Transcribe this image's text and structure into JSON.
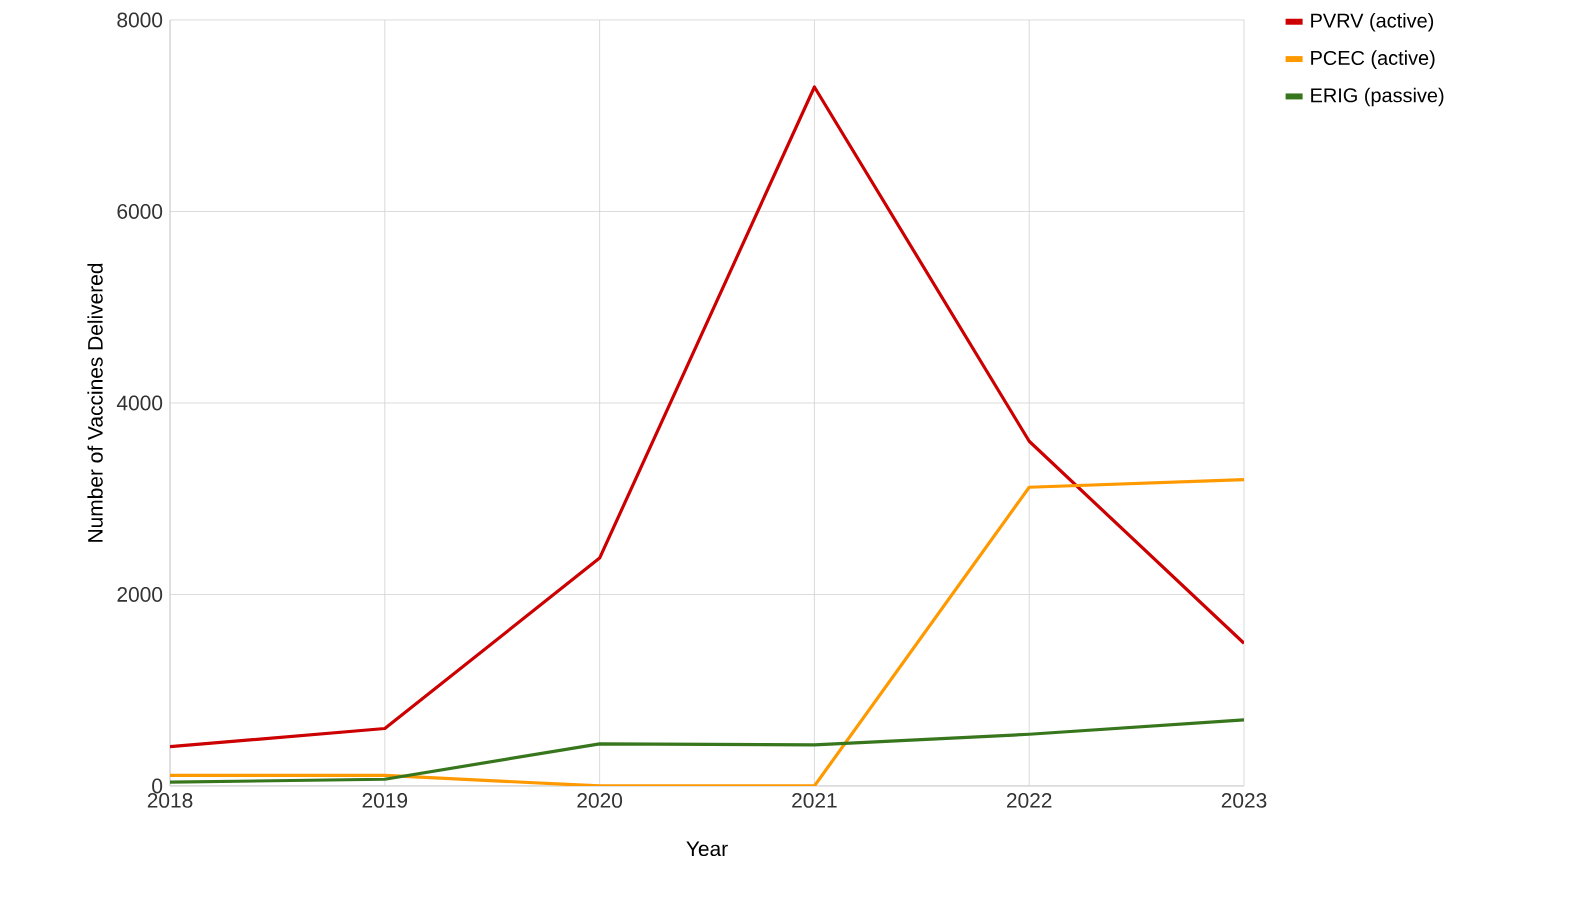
{
  "chart_data": {
    "type": "line",
    "xlabel": "Year",
    "ylabel": "Number of Vaccines Delivered",
    "x": [
      2018,
      2019,
      2020,
      2021,
      2022,
      2023
    ],
    "series": [
      {
        "name": "PVRV (active)",
        "color": "#cc0000",
        "values": [
          410,
          600,
          2380,
          7300,
          3600,
          1490
        ]
      },
      {
        "name": "PCEC (active)",
        "color": "#ff9900",
        "values": [
          110,
          110,
          0,
          0,
          3120,
          3200
        ]
      },
      {
        "name": "ERIG (passive)",
        "color": "#38761d",
        "values": [
          40,
          70,
          440,
          430,
          540,
          690
        ]
      }
    ],
    "xlim": [
      2018,
      2023
    ],
    "xticks": [
      2018,
      2019,
      2020,
      2021,
      2022,
      2023
    ],
    "ylim": [
      0,
      8000
    ],
    "yticks": [
      0,
      2000,
      4000,
      6000,
      8000
    ],
    "grid": true,
    "legend": "top right",
    "marker": "none",
    "line_style": "solid"
  }
}
